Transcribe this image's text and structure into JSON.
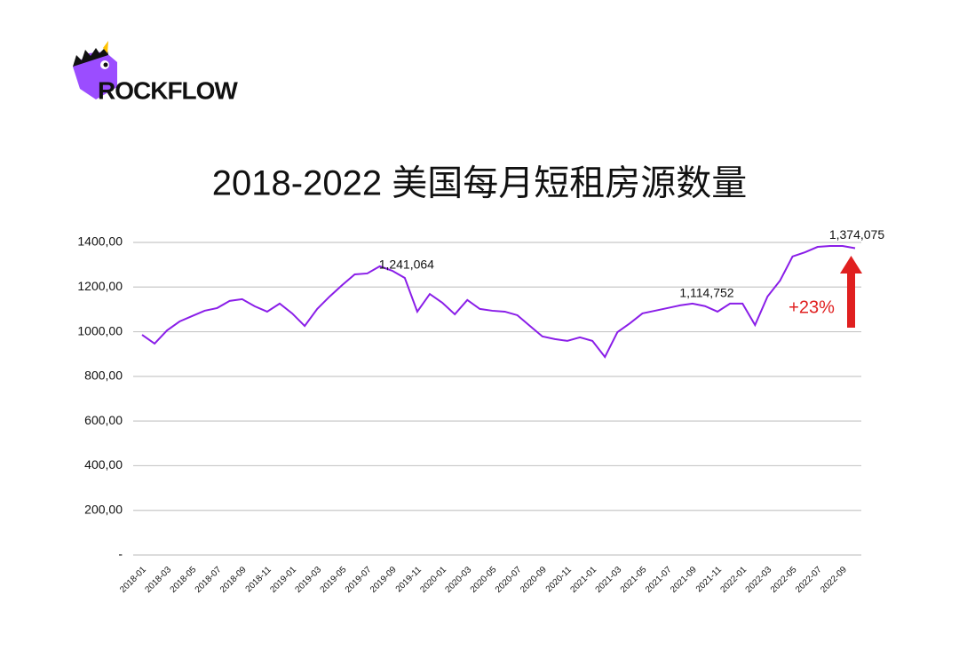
{
  "logo": "ROCKFLOW",
  "chart_data": {
    "type": "line",
    "title": "2018-2022 美国每月短租房源数量",
    "categories": [
      "2018-01",
      null,
      "2018-03",
      null,
      "2018-05",
      null,
      "2018-07",
      null,
      "2018-09",
      null,
      "2018-11",
      null,
      "2019-01",
      null,
      "2019-03",
      null,
      "2019-05",
      null,
      "2019-07",
      null,
      "2019-09",
      null,
      "2019-11",
      null,
      "2020-01",
      null,
      "2020-03",
      null,
      "2020-05",
      null,
      "2020-07",
      null,
      "2020-09",
      null,
      "2020-11",
      null,
      "2021-01",
      null,
      "2021-03",
      null,
      "2021-05",
      null,
      "2021-07",
      null,
      "2021-09",
      null,
      "2021-11",
      null,
      "2022-01",
      null,
      "2022-03",
      null,
      "2022-05",
      null,
      "2022-07",
      null,
      "2022-09",
      null
    ],
    "series": [
      {
        "color": "#8a1ee8",
        "values": [
          986,
          947,
          1006,
          1046,
          1070,
          1094,
          1106,
          1138,
          1146,
          1114,
          1090,
          1126,
          1082,
          1026,
          1102,
          1158,
          1209,
          1257,
          1261,
          1293,
          1273,
          1241.064,
          1090,
          1169,
          1130,
          1078,
          1142,
          1102,
          1094,
          1090,
          1074,
          1026,
          979,
          967,
          959,
          975,
          959,
          887,
          998,
          1038,
          1082,
          1094,
          1106,
          1118,
          1126,
          1114.752,
          1090,
          1126,
          1126,
          1030,
          1158,
          1229,
          1337,
          1356,
          1380,
          1384,
          1384,
          1374.075
        ],
        "value_labels": [
          null,
          null,
          null,
          null,
          null,
          null,
          null,
          null,
          null,
          null,
          null,
          null,
          null,
          null,
          null,
          null,
          null,
          null,
          null,
          null,
          null,
          "1,241,064",
          null,
          null,
          null,
          null,
          null,
          null,
          null,
          null,
          null,
          null,
          null,
          null,
          null,
          null,
          null,
          null,
          null,
          null,
          null,
          null,
          null,
          null,
          null,
          "1,114,752",
          null,
          null,
          null,
          null,
          null,
          null,
          null,
          null,
          null,
          null,
          null,
          "1,374,075"
        ]
      }
    ],
    "ylim": [
      0,
      1400
    ],
    "yticks": [
      {
        "value": 0,
        "label": "-"
      },
      {
        "value": 200,
        "label": "200,00"
      },
      {
        "value": 400,
        "label": "400,00"
      },
      {
        "value": 600,
        "label": "600,00"
      },
      {
        "value": 800,
        "label": "800,00"
      },
      {
        "value": 1000,
        "label": "1000,00"
      },
      {
        "value": 1200,
        "label": "1200,00"
      },
      {
        "value": 1400,
        "label": "1400,00"
      }
    ],
    "grid": true,
    "annotation": "+23%",
    "annotation_color": "#e02020"
  }
}
